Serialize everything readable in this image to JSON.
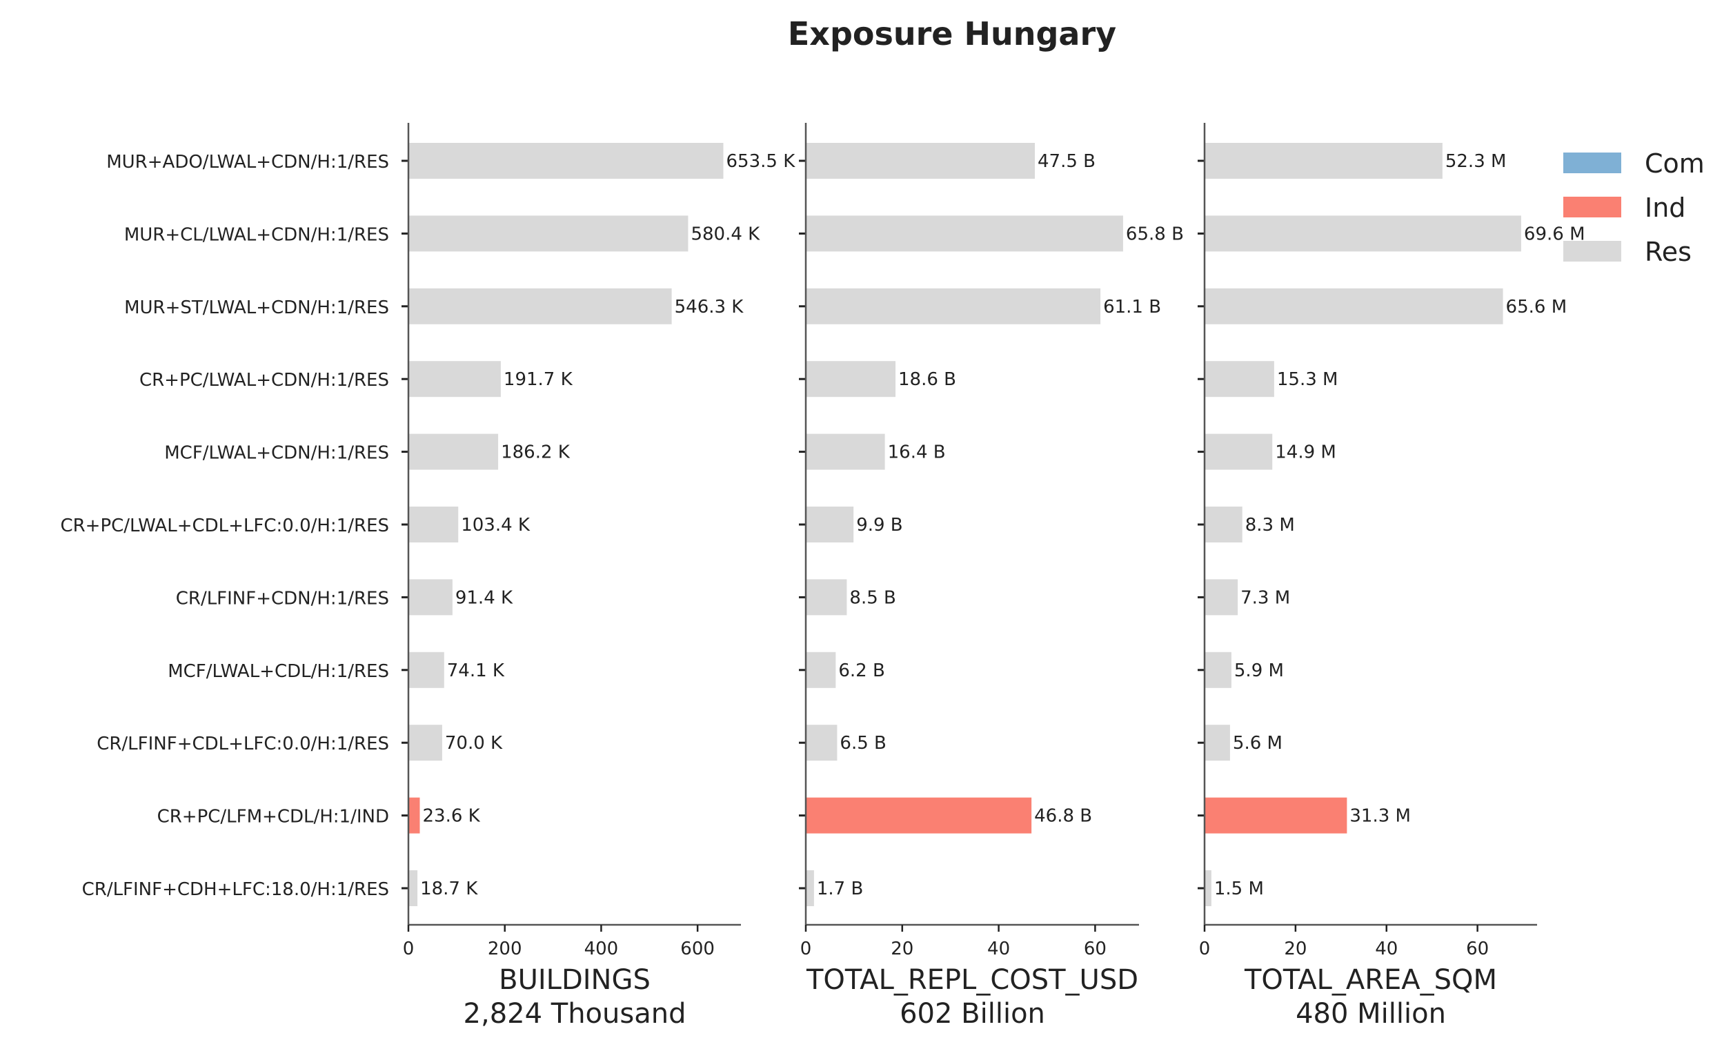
{
  "chart_data": {
    "type": "bar",
    "orientation": "horizontal",
    "title": "Exposure Hungary",
    "categories": [
      "MUR+ADO/LWAL+CDN/H:1/RES",
      "MUR+CL/LWAL+CDN/H:1/RES",
      "MUR+ST/LWAL+CDN/H:1/RES",
      "CR+PC/LWAL+CDN/H:1/RES",
      "MCF/LWAL+CDN/H:1/RES",
      "CR+PC/LWAL+CDL+LFC:0.0/H:1/RES",
      "CR/LFINF+CDN/H:1/RES",
      "MCF/LWAL+CDL/H:1/RES",
      "CR/LFINF+CDL+LFC:0.0/H:1/RES",
      "CR+PC/LFM+CDL/H:1/IND",
      "CR/LFINF+CDH+LFC:18.0/H:1/RES"
    ],
    "bar_class": [
      "Res",
      "Res",
      "Res",
      "Res",
      "Res",
      "Res",
      "Res",
      "Res",
      "Res",
      "Ind",
      "Res"
    ],
    "legend": {
      "position": "top-right",
      "entries": [
        {
          "label": "Com",
          "color": "#7fb0d5"
        },
        {
          "label": "Ind",
          "color": "#fa8072"
        },
        {
          "label": "Res",
          "color": "#d9d9d9"
        }
      ]
    },
    "panels": [
      {
        "xlabel": "BUILDINGS",
        "total_label": "2,824 Thousand",
        "xlim": [
          0,
          690
        ],
        "xticks": [
          0,
          200,
          400,
          600
        ],
        "values": [
          653.5,
          580.4,
          546.3,
          191.7,
          186.2,
          103.4,
          91.4,
          74.1,
          70.0,
          23.6,
          18.7
        ],
        "value_labels": [
          "653.5 K",
          "580.4 K",
          "546.3 K",
          "191.7 K",
          "186.2 K",
          "103.4 K",
          "91.4 K",
          "74.1 K",
          "70.0 K",
          "23.6 K",
          "18.7 K"
        ]
      },
      {
        "xlabel": "TOTAL_REPL_COST_USD",
        "total_label": "602 Billion",
        "xlim": [
          0,
          69.1
        ],
        "xticks": [
          0,
          20,
          40,
          60
        ],
        "values": [
          47.5,
          65.8,
          61.1,
          18.6,
          16.4,
          9.9,
          8.5,
          6.2,
          6.5,
          46.8,
          1.7
        ],
        "value_labels": [
          "47.5 B",
          "65.8 B",
          "61.1 B",
          "18.6 B",
          "16.4 B",
          "9.9 B",
          "8.5 B",
          "6.2 B",
          "6.5 B",
          "46.8 B",
          "1.7 B"
        ]
      },
      {
        "xlabel": "TOTAL_AREA_SQM",
        "total_label": "480 Million",
        "xlim": [
          0,
          73.1
        ],
        "xticks": [
          0,
          20,
          40,
          60
        ],
        "values": [
          52.3,
          69.6,
          65.6,
          15.3,
          14.9,
          8.3,
          7.3,
          5.9,
          5.6,
          31.3,
          1.5
        ],
        "value_labels": [
          "52.3 M",
          "69.6 M",
          "65.6 M",
          "15.3 M",
          "14.9 M",
          "8.3 M",
          "7.3 M",
          "5.9 M",
          "5.6 M",
          "31.3 M",
          "1.5 M"
        ]
      }
    ]
  }
}
